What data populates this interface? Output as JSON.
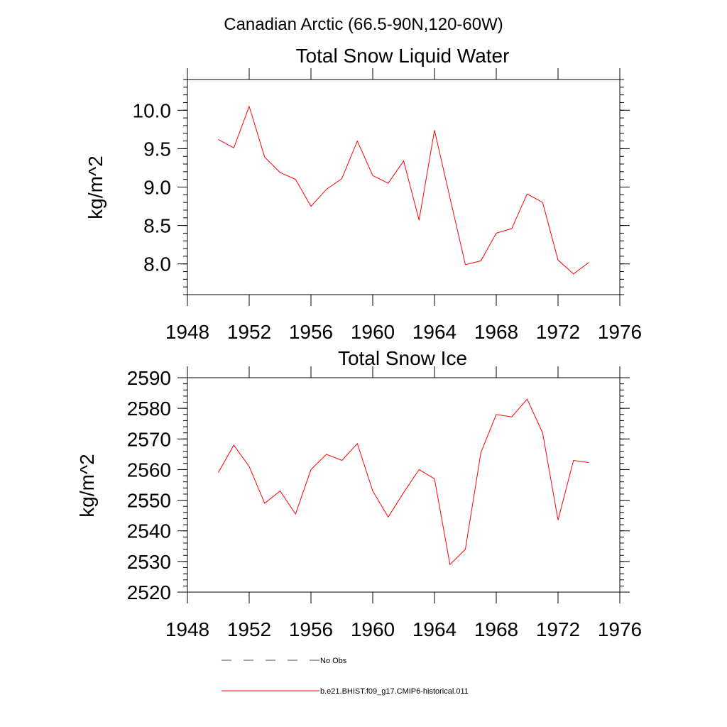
{
  "page_title": "Canadian Arctic (66.5-90N,120-60W)",
  "chart_data": [
    {
      "type": "line",
      "title": "Total Snow Liquid Water",
      "xlabel": "",
      "ylabel": "kg/m^2",
      "xlim": [
        1948,
        1976
      ],
      "ylim": [
        7.6,
        10.4
      ],
      "xticks": [
        1948,
        1952,
        1956,
        1960,
        1964,
        1968,
        1972,
        1976
      ],
      "yticks": [
        8.0,
        8.5,
        9.0,
        9.5,
        10.0
      ],
      "xtick_labels": [
        "1948",
        "1952",
        "1956",
        "1960",
        "1964",
        "1968",
        "1972",
        "1976"
      ],
      "ytick_labels": [
        "8.0",
        "8.5",
        "9.0",
        "9.5",
        "10.0"
      ],
      "grid": false,
      "series": [
        {
          "color": "#ff0000",
          "x": [
            1950,
            1951,
            1952,
            1953,
            1954,
            1955,
            1956,
            1957,
            1958,
            1959,
            1960,
            1961,
            1962,
            1963,
            1964,
            1965,
            1966,
            1967,
            1968,
            1969,
            1970,
            1971,
            1972,
            1973,
            1974
          ],
          "y": [
            9.62,
            9.51,
            10.05,
            9.39,
            9.19,
            9.1,
            8.75,
            8.97,
            9.11,
            9.6,
            9.15,
            9.05,
            9.34,
            8.57,
            9.74,
            8.86,
            7.99,
            8.04,
            8.4,
            8.46,
            8.91,
            8.8,
            8.05,
            7.87,
            8.02
          ]
        }
      ]
    },
    {
      "type": "line",
      "title": "Total Snow Ice",
      "xlabel": "",
      "ylabel": "kg/m^2",
      "xlim": [
        1948,
        1976
      ],
      "ylim": [
        2520,
        2590
      ],
      "xticks": [
        1948,
        1952,
        1956,
        1960,
        1964,
        1968,
        1972,
        1976
      ],
      "yticks": [
        2520,
        2530,
        2540,
        2550,
        2560,
        2570,
        2580,
        2590
      ],
      "xtick_labels": [
        "1948",
        "1952",
        "1956",
        "1960",
        "1964",
        "1968",
        "1972",
        "1976"
      ],
      "ytick_labels": [
        "2520",
        "2530",
        "2540",
        "2550",
        "2560",
        "2570",
        "2580",
        "2590"
      ],
      "grid": false,
      "series": [
        {
          "color": "#ff0000",
          "x": [
            1950,
            1951,
            1952,
            1953,
            1954,
            1955,
            1956,
            1957,
            1958,
            1959,
            1960,
            1961,
            1962,
            1963,
            1964,
            1965,
            1966,
            1967,
            1968,
            1969,
            1970,
            1971,
            1972,
            1973,
            1974
          ],
          "y": [
            2559,
            2568,
            2561,
            2549,
            2553,
            2545.5,
            2560,
            2565,
            2563,
            2568.5,
            2553,
            2544.5,
            2552.5,
            2560,
            2557,
            2529,
            2534,
            2565.5,
            2578,
            2577.2,
            2583,
            2572,
            2543.5,
            2563,
            2562.3
          ]
        }
      ]
    }
  ],
  "legend": {
    "position": "bottom",
    "items": [
      {
        "label": "No Obs",
        "color": "#3d4a7a",
        "dash": "dashed"
      },
      {
        "label": "b.e21.BHIST.f09_g17.CMIP6-historical.011",
        "color": "#ff0000",
        "dash": "solid"
      }
    ]
  }
}
